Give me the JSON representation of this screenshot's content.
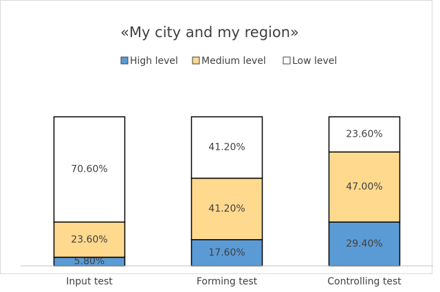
{
  "chart_data": {
    "type": "stacked_bar",
    "title": "«My city and my region»",
    "categories": [
      "Input test",
      "Forming test",
      "Controlling test"
    ],
    "series": [
      {
        "name": "High level",
        "color": "#5b9bd5",
        "values": [
          5.8,
          17.6,
          29.4
        ],
        "value_labels": [
          "5.80%",
          "17.60%",
          "29.40%"
        ]
      },
      {
        "name": "Medium level",
        "color": "#ffd98e",
        "values": [
          23.6,
          41.2,
          47.0
        ],
        "value_labels": [
          "23.60%",
          "41.20%",
          "47.00%"
        ]
      },
      {
        "name": "Low level",
        "color": "#ffffff",
        "values": [
          70.6,
          41.2,
          23.6
        ],
        "value_labels": [
          "70.60%",
          "41.20%",
          "23.60%"
        ]
      }
    ],
    "legend": "top"
  }
}
